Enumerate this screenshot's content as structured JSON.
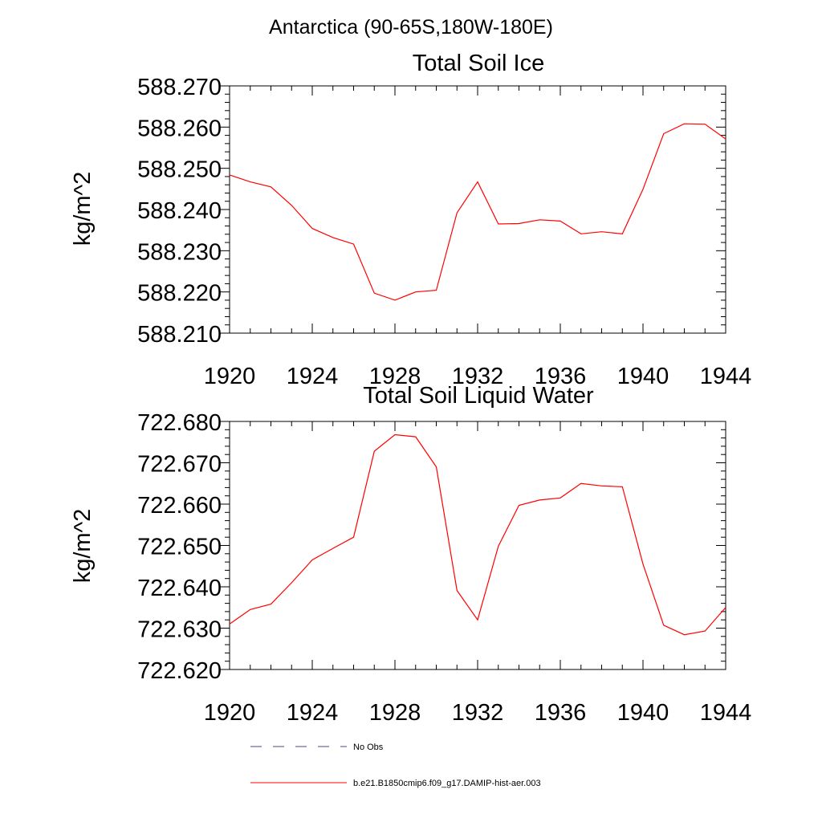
{
  "figure": {
    "title": "Antarctica (90-65S,180W-180E)"
  },
  "chart_data": [
    {
      "type": "line",
      "title": "Total Soil Ice",
      "xlabel": "",
      "ylabel": "kg/m^2",
      "xlim": [
        1920,
        1944
      ],
      "ylim": [
        588.21,
        588.27
      ],
      "x_ticks": [
        "1920",
        "1924",
        "1928",
        "1932",
        "1936",
        "1940",
        "1944"
      ],
      "y_ticks": [
        "588.270",
        "588.260",
        "588.250",
        "588.240",
        "588.230",
        "588.220",
        "588.210"
      ],
      "series": [
        {
          "name": "b.e21.B1850cmip6.f09_g17.DAMIP-hist-aer.003",
          "color": "#ff0000",
          "x": [
            1920,
            1921,
            1922,
            1923,
            1924,
            1925,
            1926,
            1927,
            1928,
            1929,
            1930,
            1931,
            1932,
            1933,
            1934,
            1935,
            1936,
            1937,
            1938,
            1939,
            1940,
            1941,
            1942,
            1943,
            1944
          ],
          "values": [
            588.2484,
            588.2467,
            588.2455,
            588.241,
            588.2354,
            588.2332,
            588.2316,
            588.2197,
            588.218,
            588.22,
            588.2204,
            588.2392,
            588.2467,
            588.2365,
            588.2366,
            588.2375,
            588.2372,
            588.2341,
            588.2346,
            588.2341,
            588.2449,
            588.2584,
            588.2608,
            588.2607,
            588.2571
          ]
        }
      ]
    },
    {
      "type": "line",
      "title": "Total Soil Liquid Water",
      "xlabel": "",
      "ylabel": "kg/m^2",
      "xlim": [
        1920,
        1944
      ],
      "ylim": [
        722.62,
        722.68
      ],
      "x_ticks": [
        "1920",
        "1924",
        "1928",
        "1932",
        "1936",
        "1940",
        "1944"
      ],
      "y_ticks": [
        "722.680",
        "722.670",
        "722.660",
        "722.650",
        "722.640",
        "722.630",
        "722.620"
      ],
      "series": [
        {
          "name": "b.e21.B1850cmip6.f09_g17.DAMIP-hist-aer.003",
          "color": "#ff0000",
          "x": [
            1920,
            1921,
            1922,
            1923,
            1924,
            1925,
            1926,
            1927,
            1928,
            1929,
            1930,
            1931,
            1932,
            1933,
            1934,
            1935,
            1936,
            1937,
            1938,
            1939,
            1940,
            1941,
            1942,
            1943,
            1944
          ],
          "values": [
            722.631,
            722.6345,
            722.6358,
            722.641,
            722.6465,
            722.6493,
            722.652,
            722.6728,
            722.6768,
            722.6763,
            722.669,
            722.6391,
            722.632,
            722.6498,
            722.6597,
            722.661,
            722.6615,
            722.665,
            722.6644,
            722.6642,
            722.6455,
            722.6307,
            722.6284,
            722.6293,
            722.635
          ]
        }
      ]
    }
  ],
  "legend": {
    "items": [
      {
        "label": "No Obs",
        "color": "#4a4a7a",
        "style": "dashed"
      },
      {
        "label": "b.e21.B1850cmip6.f09_g17.DAMIP-hist-aer.003",
        "color": "#ff0000",
        "style": "solid"
      }
    ]
  }
}
